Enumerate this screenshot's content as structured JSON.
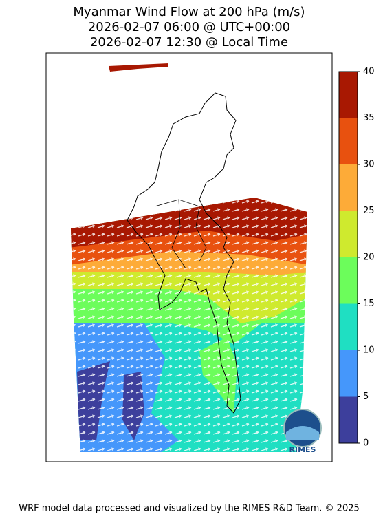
{
  "title": [
    "Myanmar Wind Flow at 200 hPa (m/s)",
    "2026-02-07 06:00 @ UTC+00:00",
    "2026-02-07 12:30 @ Local Time"
  ],
  "colorbar": {
    "lim": [
      0,
      40
    ],
    "ticks": [
      0,
      5,
      10,
      15,
      20,
      25,
      30,
      35,
      40
    ],
    "colors": [
      "#3d3f9c",
      "#4597fb",
      "#1fdfc2",
      "#6cfd5b",
      "#cfea2e",
      "#fdab38",
      "#e8510f",
      "#a81802"
    ]
  },
  "logo": "RIMES",
  "footer": "WRF model data processed and visualized by the RIMES R&D Team. © 2025"
}
